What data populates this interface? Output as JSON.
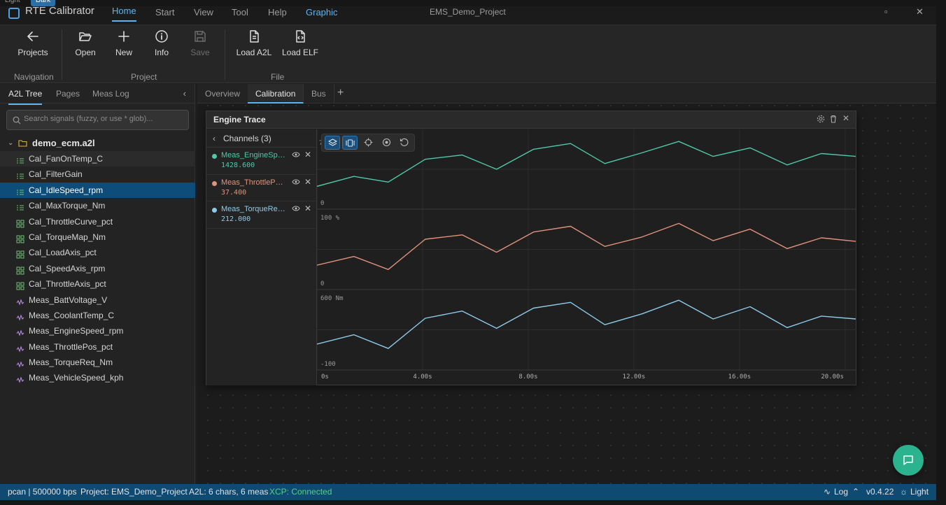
{
  "theme_switch": {
    "light": "Light",
    "dark": "Dark"
  },
  "app": {
    "name": "RTE Calibrator",
    "project_title": "EMS_Demo_Project"
  },
  "menu": [
    "Home",
    "Start",
    "View",
    "Tool",
    "Help",
    "Graphic"
  ],
  "ribbon": {
    "buttons": {
      "projects": "Projects",
      "open": "Open",
      "new": "New",
      "info": "Info",
      "save": "Save",
      "load_a2l": "Load A2L",
      "load_elf": "Load ELF"
    },
    "groups": {
      "navigation": "Navigation",
      "project": "Project",
      "file": "File"
    }
  },
  "left_panel": {
    "tabs": [
      "A2L Tree",
      "Pages",
      "Meas Log"
    ],
    "search_placeholder": "Search signals (fuzzy, or use * glob)...",
    "root": "demo_ecm.a2l",
    "items": [
      {
        "label": "Cal_FanOnTemp_C",
        "kind": "curve"
      },
      {
        "label": "Cal_FilterGain",
        "kind": "curve"
      },
      {
        "label": "Cal_IdleSpeed_rpm",
        "kind": "curve"
      },
      {
        "label": "Cal_MaxTorque_Nm",
        "kind": "curve"
      },
      {
        "label": "Cal_ThrottleCurve_pct",
        "kind": "map"
      },
      {
        "label": "Cal_TorqueMap_Nm",
        "kind": "map"
      },
      {
        "label": "Cal_LoadAxis_pct",
        "kind": "map"
      },
      {
        "label": "Cal_SpeedAxis_rpm",
        "kind": "map"
      },
      {
        "label": "Cal_ThrottleAxis_pct",
        "kind": "map"
      },
      {
        "label": "Meas_BattVoltage_V",
        "kind": "meas"
      },
      {
        "label": "Meas_CoolantTemp_C",
        "kind": "meas"
      },
      {
        "label": "Meas_EngineSpeed_rpm",
        "kind": "meas"
      },
      {
        "label": "Meas_ThrottlePos_pct",
        "kind": "meas"
      },
      {
        "label": "Meas_TorqueReq_Nm",
        "kind": "meas"
      },
      {
        "label": "Meas_VehicleSpeed_kph",
        "kind": "meas"
      }
    ]
  },
  "main_tabs": [
    "Overview",
    "Calibration",
    "Bus"
  ],
  "trace": {
    "title": "Engine Trace",
    "channels_header": "Channels (3)",
    "channels": [
      {
        "name": "Meas_EngineSpe…",
        "value": "1428.600",
        "color": "#4fc9a8"
      },
      {
        "name": "Meas_ThrottlePo…",
        "value": "37.400",
        "color": "#e0937a"
      },
      {
        "name": "Meas_TorqueReq…",
        "value": "212.000",
        "color": "#8dcbea"
      }
    ],
    "partial_axis_label": "7"
  },
  "chart_data": {
    "type": "line",
    "x_unit": "s",
    "x": [
      0,
      2,
      4,
      6,
      8,
      10,
      12,
      14,
      16,
      18,
      20
    ],
    "x_ticks": [
      "0s",
      "4.00s",
      "8.00s",
      "12.00s",
      "16.00s",
      "20.00s"
    ],
    "x_tick_values": [
      0,
      4,
      8,
      12,
      16,
      20
    ],
    "lanes": [
      {
        "axis_top": "",
        "axis_bottom": "0",
        "color": "#4fc9a8"
      },
      {
        "axis_top": "100 %",
        "axis_bottom": "0",
        "color": "#e0937a"
      },
      {
        "axis_top": "600 Nm",
        "axis_bottom": "-100",
        "color": "#8dcbea"
      }
    ],
    "series_points": [
      [
        [
          0,
          0.28
        ],
        [
          1.4,
          0.42
        ],
        [
          2.7,
          0.34
        ],
        [
          4.1,
          0.66
        ],
        [
          5.5,
          0.72
        ],
        [
          6.8,
          0.52
        ],
        [
          8.2,
          0.8
        ],
        [
          9.6,
          0.88
        ],
        [
          10.9,
          0.6
        ],
        [
          12.3,
          0.75
        ],
        [
          13.7,
          0.91
        ],
        [
          15.0,
          0.7
        ],
        [
          16.4,
          0.82
        ],
        [
          17.8,
          0.58
        ],
        [
          19.1,
          0.74
        ],
        [
          20.4,
          0.7
        ]
      ],
      [
        [
          0,
          0.3
        ],
        [
          1.4,
          0.42
        ],
        [
          2.7,
          0.24
        ],
        [
          4.1,
          0.66
        ],
        [
          5.5,
          0.72
        ],
        [
          6.8,
          0.48
        ],
        [
          8.2,
          0.76
        ],
        [
          9.6,
          0.84
        ],
        [
          10.9,
          0.56
        ],
        [
          12.3,
          0.69
        ],
        [
          13.7,
          0.88
        ],
        [
          15.0,
          0.64
        ],
        [
          16.4,
          0.8
        ],
        [
          17.8,
          0.53
        ],
        [
          19.1,
          0.68
        ],
        [
          20.4,
          0.63
        ]
      ],
      [
        [
          0,
          0.32
        ],
        [
          1.4,
          0.45
        ],
        [
          2.7,
          0.26
        ],
        [
          4.1,
          0.68
        ],
        [
          5.5,
          0.78
        ],
        [
          6.8,
          0.54
        ],
        [
          8.2,
          0.82
        ],
        [
          9.6,
          0.9
        ],
        [
          10.9,
          0.59
        ],
        [
          12.3,
          0.74
        ],
        [
          13.7,
          0.93
        ],
        [
          15.0,
          0.67
        ],
        [
          16.4,
          0.84
        ],
        [
          17.8,
          0.55
        ],
        [
          19.1,
          0.71
        ],
        [
          20.4,
          0.67
        ]
      ]
    ]
  },
  "statusbar": {
    "bus": "pcan | 500000 bps",
    "project": "Project: EMS_Demo_Project",
    "a2l": "A2L: 6 chars, 6 meas",
    "xcp": "XCP: Connected",
    "log": "Log",
    "version": "v0.4.22",
    "theme": "Light"
  }
}
